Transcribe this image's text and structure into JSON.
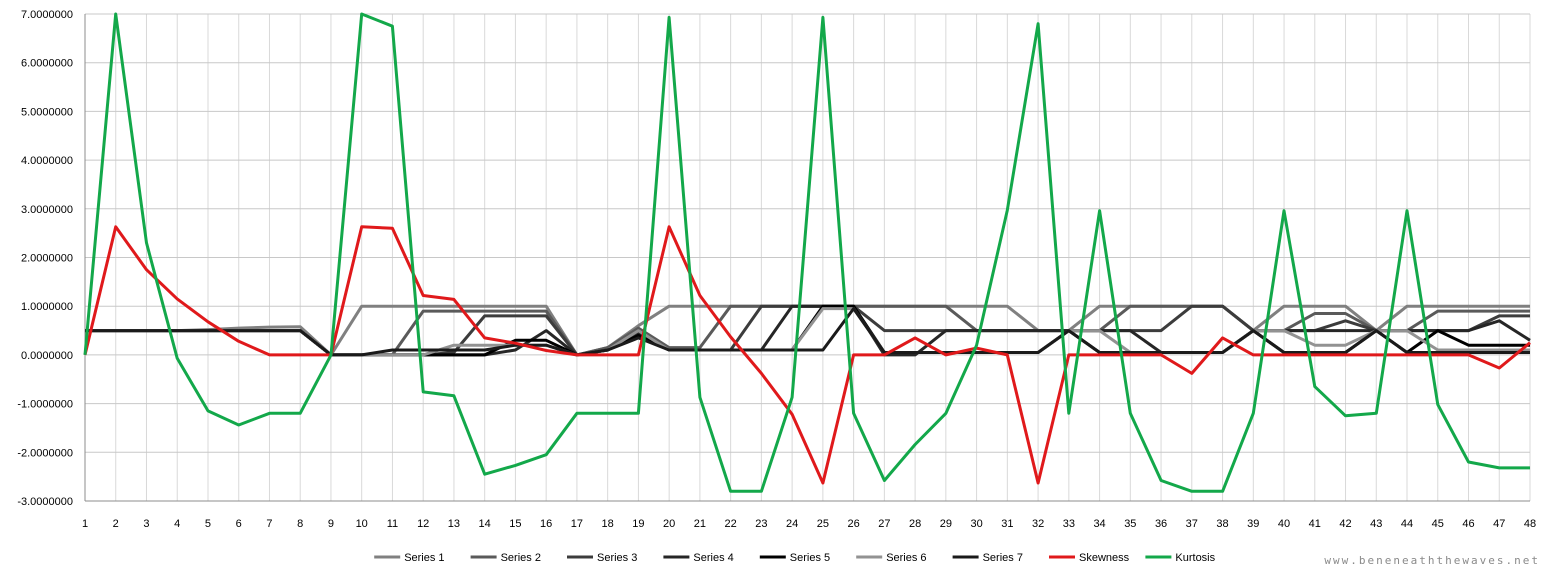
{
  "chart_data": {
    "type": "line",
    "title": "",
    "xlabel": "",
    "ylabel": "",
    "ylim": [
      -3,
      7
    ],
    "y_ticks": [
      "-3.0000000",
      "-2.0000000",
      "-1.0000000",
      "0.0000000",
      "1.0000000",
      "2.0000000",
      "3.0000000",
      "4.0000000",
      "5.0000000",
      "6.0000000",
      "7.0000000"
    ],
    "x": [
      1,
      2,
      3,
      4,
      5,
      6,
      7,
      8,
      9,
      10,
      11,
      12,
      13,
      14,
      15,
      16,
      17,
      18,
      19,
      20,
      21,
      22,
      23,
      24,
      25,
      26,
      27,
      28,
      29,
      30,
      31,
      32,
      33,
      34,
      35,
      36,
      37,
      38,
      39,
      40,
      41,
      42,
      43,
      44,
      45,
      46,
      47,
      48
    ],
    "grid": true,
    "legend_position": "bottom",
    "series": [
      {
        "name": "Series 1",
        "color": "#808080",
        "values": [
          0.5,
          0.5,
          0.5,
          0.5,
          0.52,
          0.55,
          0.57,
          0.58,
          0,
          1,
          1,
          1,
          1,
          1,
          1,
          1,
          0,
          0.15,
          0.6,
          1,
          1,
          1,
          1,
          1,
          1,
          1,
          1,
          1,
          1,
          1,
          1,
          0.5,
          0.5,
          1,
          1,
          1,
          1,
          1,
          0.5,
          1,
          1,
          1,
          0.5,
          1,
          1,
          1,
          1,
          1
        ]
      },
      {
        "name": "Series 2",
        "color": "#5a5a5a",
        "values": [
          0.5,
          0.5,
          0.5,
          0.5,
          0.5,
          0.5,
          0.5,
          0.5,
          0,
          0,
          0,
          0.9,
          0.9,
          0.9,
          0.9,
          0.9,
          0,
          0.15,
          0.55,
          0.15,
          0.15,
          1,
          1,
          1,
          1,
          1,
          1,
          1,
          1,
          0.5,
          0.5,
          0.5,
          0.5,
          0.5,
          1,
          1,
          1,
          1,
          0.5,
          0.5,
          0.85,
          0.85,
          0.5,
          0.5,
          0.9,
          0.9,
          0.9,
          0.9
        ]
      },
      {
        "name": "Series 3",
        "color": "#3c3c3c",
        "values": [
          0.5,
          0.5,
          0.5,
          0.5,
          0.5,
          0.5,
          0.5,
          0.5,
          0,
          0,
          0,
          0,
          0.05,
          0.8,
          0.8,
          0.8,
          0,
          0.1,
          0.5,
          0.1,
          0.1,
          0.1,
          1,
          1,
          1,
          1,
          0.5,
          0.5,
          0.5,
          0.5,
          0.5,
          0.5,
          0.5,
          0.5,
          0.5,
          0.5,
          1,
          1,
          0.5,
          0.5,
          0.5,
          0.7,
          0.5,
          0.5,
          0.5,
          0.5,
          0.8,
          0.8
        ]
      },
      {
        "name": "Series 4",
        "color": "#262626",
        "values": [
          0.5,
          0.5,
          0.5,
          0.5,
          0.5,
          0.5,
          0.5,
          0.5,
          0,
          0,
          0,
          0,
          0,
          0,
          0.1,
          0.5,
          0,
          0.1,
          0.45,
          0.1,
          0.1,
          0.1,
          0.1,
          1,
          1,
          1,
          0,
          0,
          0.5,
          0.5,
          0.5,
          0.5,
          0.5,
          0.5,
          0.5,
          0.05,
          0.05,
          0.05,
          0.5,
          0.5,
          0.5,
          0.5,
          0.5,
          0.5,
          0.5,
          0.5,
          0.7,
          0.3
        ]
      },
      {
        "name": "Series 5",
        "color": "#000000",
        "values": [
          0.5,
          0.5,
          0.5,
          0.5,
          0.5,
          0.5,
          0.5,
          0.5,
          0,
          0,
          0,
          0,
          0,
          0,
          0.3,
          0.3,
          0,
          0.1,
          0.4,
          0.1,
          0.1,
          0.1,
          0.1,
          0.1,
          1,
          1,
          0.05,
          0.05,
          0.05,
          0.05,
          0.05,
          0.05,
          0.5,
          0.05,
          0.05,
          0.05,
          0.05,
          0.05,
          0.5,
          0.05,
          0.05,
          0.05,
          0.5,
          0.05,
          0.5,
          0.2,
          0.2,
          0.2
        ]
      },
      {
        "name": "Series 6",
        "color": "#929292",
        "values": [
          0.5,
          0.5,
          0.5,
          0.5,
          0.5,
          0.5,
          0.5,
          0.5,
          0,
          0,
          0,
          0,
          0.2,
          0.2,
          0.2,
          0.2,
          0,
          0.1,
          0.5,
          0.1,
          0.1,
          0.1,
          0.1,
          0.1,
          0.95,
          0.95,
          0.05,
          0.05,
          0.05,
          0.05,
          0.05,
          0.05,
          0.5,
          0.5,
          0.05,
          0.05,
          0.05,
          0.05,
          0.5,
          0.5,
          0.2,
          0.2,
          0.5,
          0.5,
          0.1,
          0.1,
          0.1,
          0.1
        ]
      },
      {
        "name": "Series 7",
        "color": "#1a1a1a",
        "values": [
          0.5,
          0.5,
          0.5,
          0.5,
          0.5,
          0.5,
          0.5,
          0.5,
          0,
          0,
          0.1,
          0.1,
          0.1,
          0.1,
          0.2,
          0.2,
          0,
          0.1,
          0.35,
          0.1,
          0.1,
          0.1,
          0.1,
          0.1,
          0.1,
          0.95,
          0.05,
          0.05,
          0.05,
          0.05,
          0.05,
          0.05,
          0.5,
          0.05,
          0.05,
          0.05,
          0.05,
          0.05,
          0.5,
          0.05,
          0.05,
          0.05,
          0.5,
          0.05,
          0.05,
          0.05,
          0.05,
          0.05
        ]
      },
      {
        "name": "Skewness",
        "color": "#e0191b",
        "values": [
          0,
          2.63,
          1.75,
          1.15,
          0.68,
          0.28,
          0,
          0,
          0,
          2.63,
          2.6,
          1.22,
          1.14,
          0.35,
          0.24,
          0.09,
          0,
          0,
          0,
          2.63,
          1.22,
          0.37,
          -0.38,
          -1.22,
          -2.63,
          0,
          0,
          0.35,
          0,
          0.14,
          0,
          -2.63,
          0,
          0,
          0,
          0,
          -0.38,
          0.35,
          0,
          0,
          0,
          0,
          0,
          0,
          0,
          0,
          -0.27,
          0.25
        ]
      },
      {
        "name": "Kurtosis",
        "color": "#13a84a",
        "values": [
          0,
          7,
          2.3,
          -0.07,
          -1.15,
          -1.44,
          -1.2,
          -1.2,
          0,
          7,
          6.75,
          -0.76,
          -0.84,
          -2.45,
          -2.27,
          -2.05,
          -1.2,
          -1.2,
          -1.2,
          6.93,
          -0.87,
          -2.8,
          -2.8,
          -0.87,
          6.93,
          -1.2,
          -2.58,
          -1.84,
          -1.2,
          0.2,
          2.97,
          6.8,
          -1.2,
          2.96,
          -1.2,
          -2.58,
          -2.8,
          -2.8,
          -1.2,
          2.96,
          -0.65,
          -1.25,
          -1.2,
          2.96,
          -1.02,
          -2.2,
          -2.32,
          -2.32
        ]
      }
    ]
  },
  "watermark": "www.beneneaththewaves.net"
}
